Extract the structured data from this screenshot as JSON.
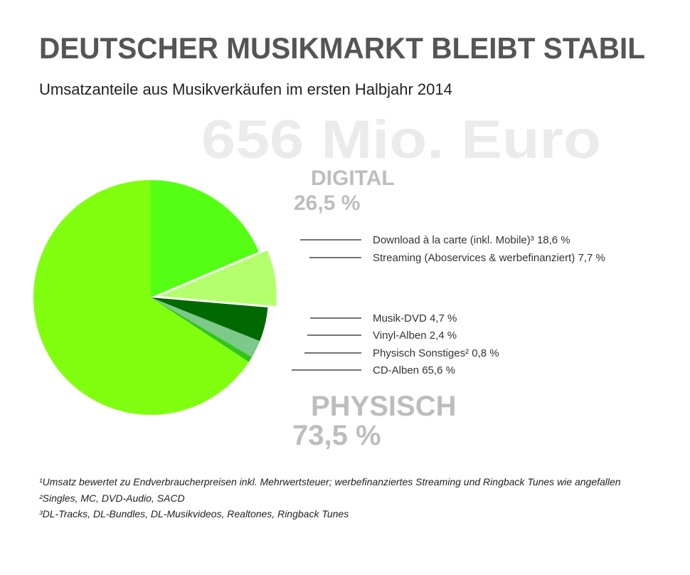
{
  "chart_data": {
    "type": "pie",
    "title": "DEUTSCHER MUSIKMARKT BLEIBT STABIL",
    "subtitle": "Umsatzanteile aus Musikverkäufen im ersten Halbjahr 2014",
    "annotation": "656 Mio. Euro",
    "categories": [
      "Download à la carte (inkl. Mobile)³",
      "Streaming (Aboservices & werbefinanziert)",
      "Musik-DVD",
      "Vinyl-Alben",
      "Physisch Sonstiges²",
      "CD-Alben"
    ],
    "values": [
      18.6,
      7.7,
      4.7,
      2.4,
      0.8,
      65.6
    ],
    "value_labels": [
      "18,6 %",
      "7,7 %",
      "4,7 %",
      "2,4 %",
      "0,8 %",
      "65,6 %"
    ],
    "colors": [
      "#55ff14",
      "#b4ff6e",
      "#006a00",
      "#7cc98a",
      "#33c41a",
      "#80ff0f"
    ],
    "groups": [
      {
        "name": "DIGITAL",
        "value": 26.5,
        "value_label": "26,5 %"
      },
      {
        "name": "PHYSISCH",
        "value": 73.5,
        "value_label": "73,5 %"
      }
    ]
  },
  "footnotes": [
    "¹Umsatz bewertet zu Endverbraucherpreisen inkl. Mehrwertsteuer; werbefinanziertes Streaming und Ringback Tunes wie angefallen",
    "²Singles, MC, DVD-Audio, SACD",
    "³DL-Tracks, DL-Bundles, DL-Musikvideos, Realtones, Ringback Tunes"
  ]
}
